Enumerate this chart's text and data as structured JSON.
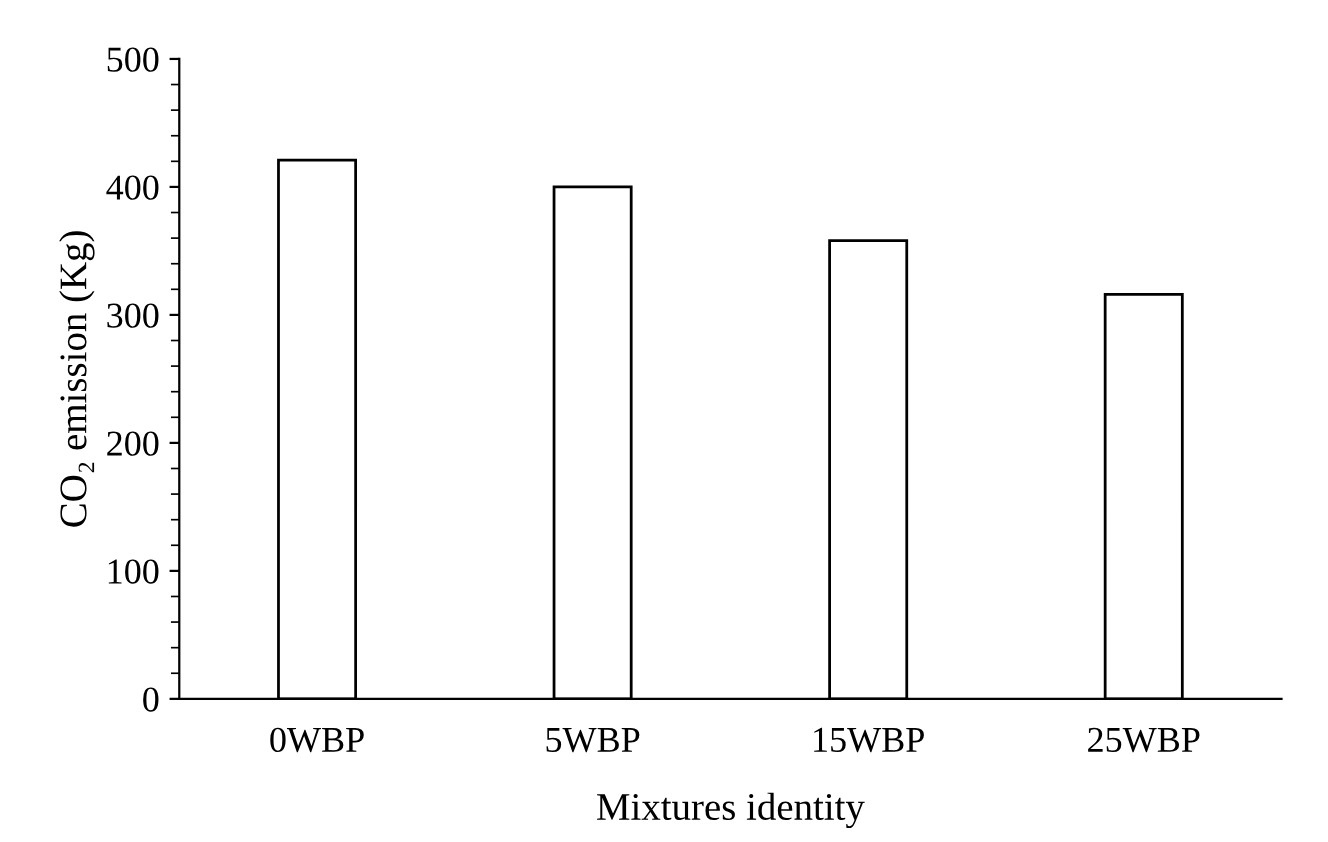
{
  "chart_data": {
    "type": "bar",
    "xlabel": "Mixtures identity",
    "ylabel": "CO₂ emission (Kg)",
    "categories": [
      "0WBP",
      "5WBP",
      "15WBP",
      "25WBP"
    ],
    "values": [
      421,
      400,
      358,
      316
    ],
    "color": "#ffffff",
    "ylim": [
      0,
      500
    ],
    "yticks": [
      0,
      100,
      200,
      300,
      400,
      500
    ],
    "grid": false,
    "legend": false
  }
}
